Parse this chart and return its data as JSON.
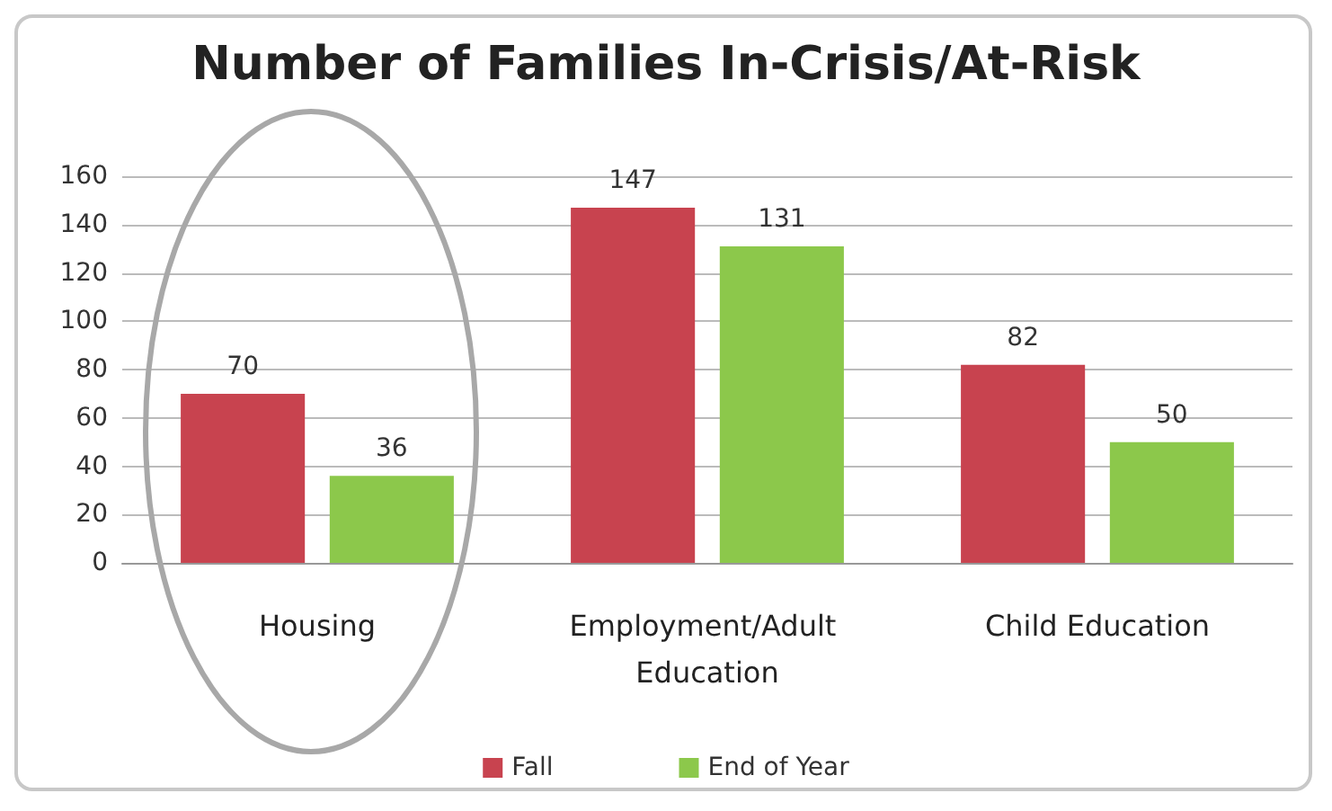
{
  "chart_data": {
    "type": "bar",
    "title": "Number of Families In-Crisis/At-Risk",
    "categories": [
      "Housing",
      "Employment/Adult Education",
      "Child Education"
    ],
    "series": [
      {
        "name": "Fall",
        "color": "#c8434f",
        "values": [
          70,
          147,
          82
        ]
      },
      {
        "name": "End of Year",
        "color": "#8cc84b",
        "values": [
          36,
          131,
          50
        ]
      }
    ],
    "ylim": [
      0,
      160
    ],
    "yticks": [
      0,
      20,
      40,
      60,
      80,
      100,
      120,
      140,
      160
    ],
    "grid": "y",
    "legend": "bottom",
    "data_labels": true
  }
}
